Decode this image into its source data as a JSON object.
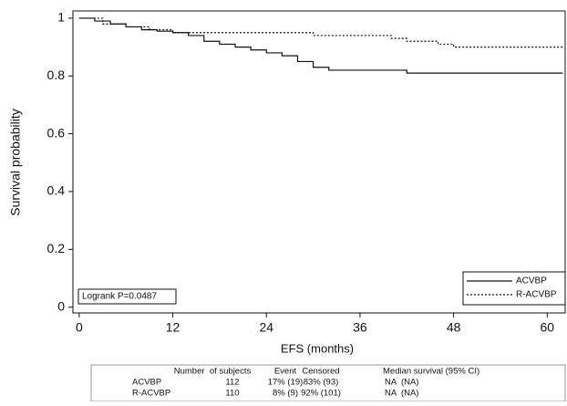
{
  "chart_data": {
    "type": "step",
    "x_label": "EFS (months)",
    "y_label": "Survival probability",
    "xlim": [
      -0.8,
      62.3
    ],
    "xticks": [
      0,
      12,
      24,
      36,
      48,
      60
    ],
    "ylim": [
      -0.02,
      1.025
    ],
    "yticks": [
      0,
      0.2,
      0.4,
      0.6,
      0.8,
      1
    ],
    "annotation": "Logrank P=0.0487",
    "legend": "bottom-right",
    "series": [
      {
        "name": "ACVBP",
        "color": "#111111",
        "dash": "solid",
        "x": [
          0,
          2,
          4,
          6,
          8,
          10,
          12,
          14,
          16,
          18,
          20,
          22,
          24,
          26,
          28,
          30,
          32,
          36,
          42,
          62
        ],
        "values": [
          1,
          0.99,
          0.98,
          0.97,
          0.96,
          0.955,
          0.95,
          0.94,
          0.92,
          0.91,
          0.9,
          0.89,
          0.88,
          0.87,
          0.85,
          0.83,
          0.82,
          0.82,
          0.81,
          0.81
        ]
      },
      {
        "name": "R-ACVBP",
        "color": "#111111",
        "dash": "dotted",
        "x": [
          0,
          3,
          6,
          9,
          12,
          18,
          24,
          30,
          40,
          42,
          46,
          48,
          62
        ],
        "values": [
          1,
          0.98,
          0.97,
          0.96,
          0.95,
          0.95,
          0.95,
          0.94,
          0.93,
          0.92,
          0.91,
          0.9,
          0.9
        ]
      }
    ]
  },
  "table": {
    "header": [
      "Number  of subjects",
      "Event",
      "Censored",
      "Median survival (95% CI)"
    ],
    "rows": [
      [
        "ACVBP",
        "112",
        "17% (19)",
        "83% (93)",
        "NA  (NA)"
      ],
      [
        "R-ACVBP",
        "110",
        "8% (9)",
        "92% (101)",
        "NA  (NA)"
      ]
    ]
  }
}
